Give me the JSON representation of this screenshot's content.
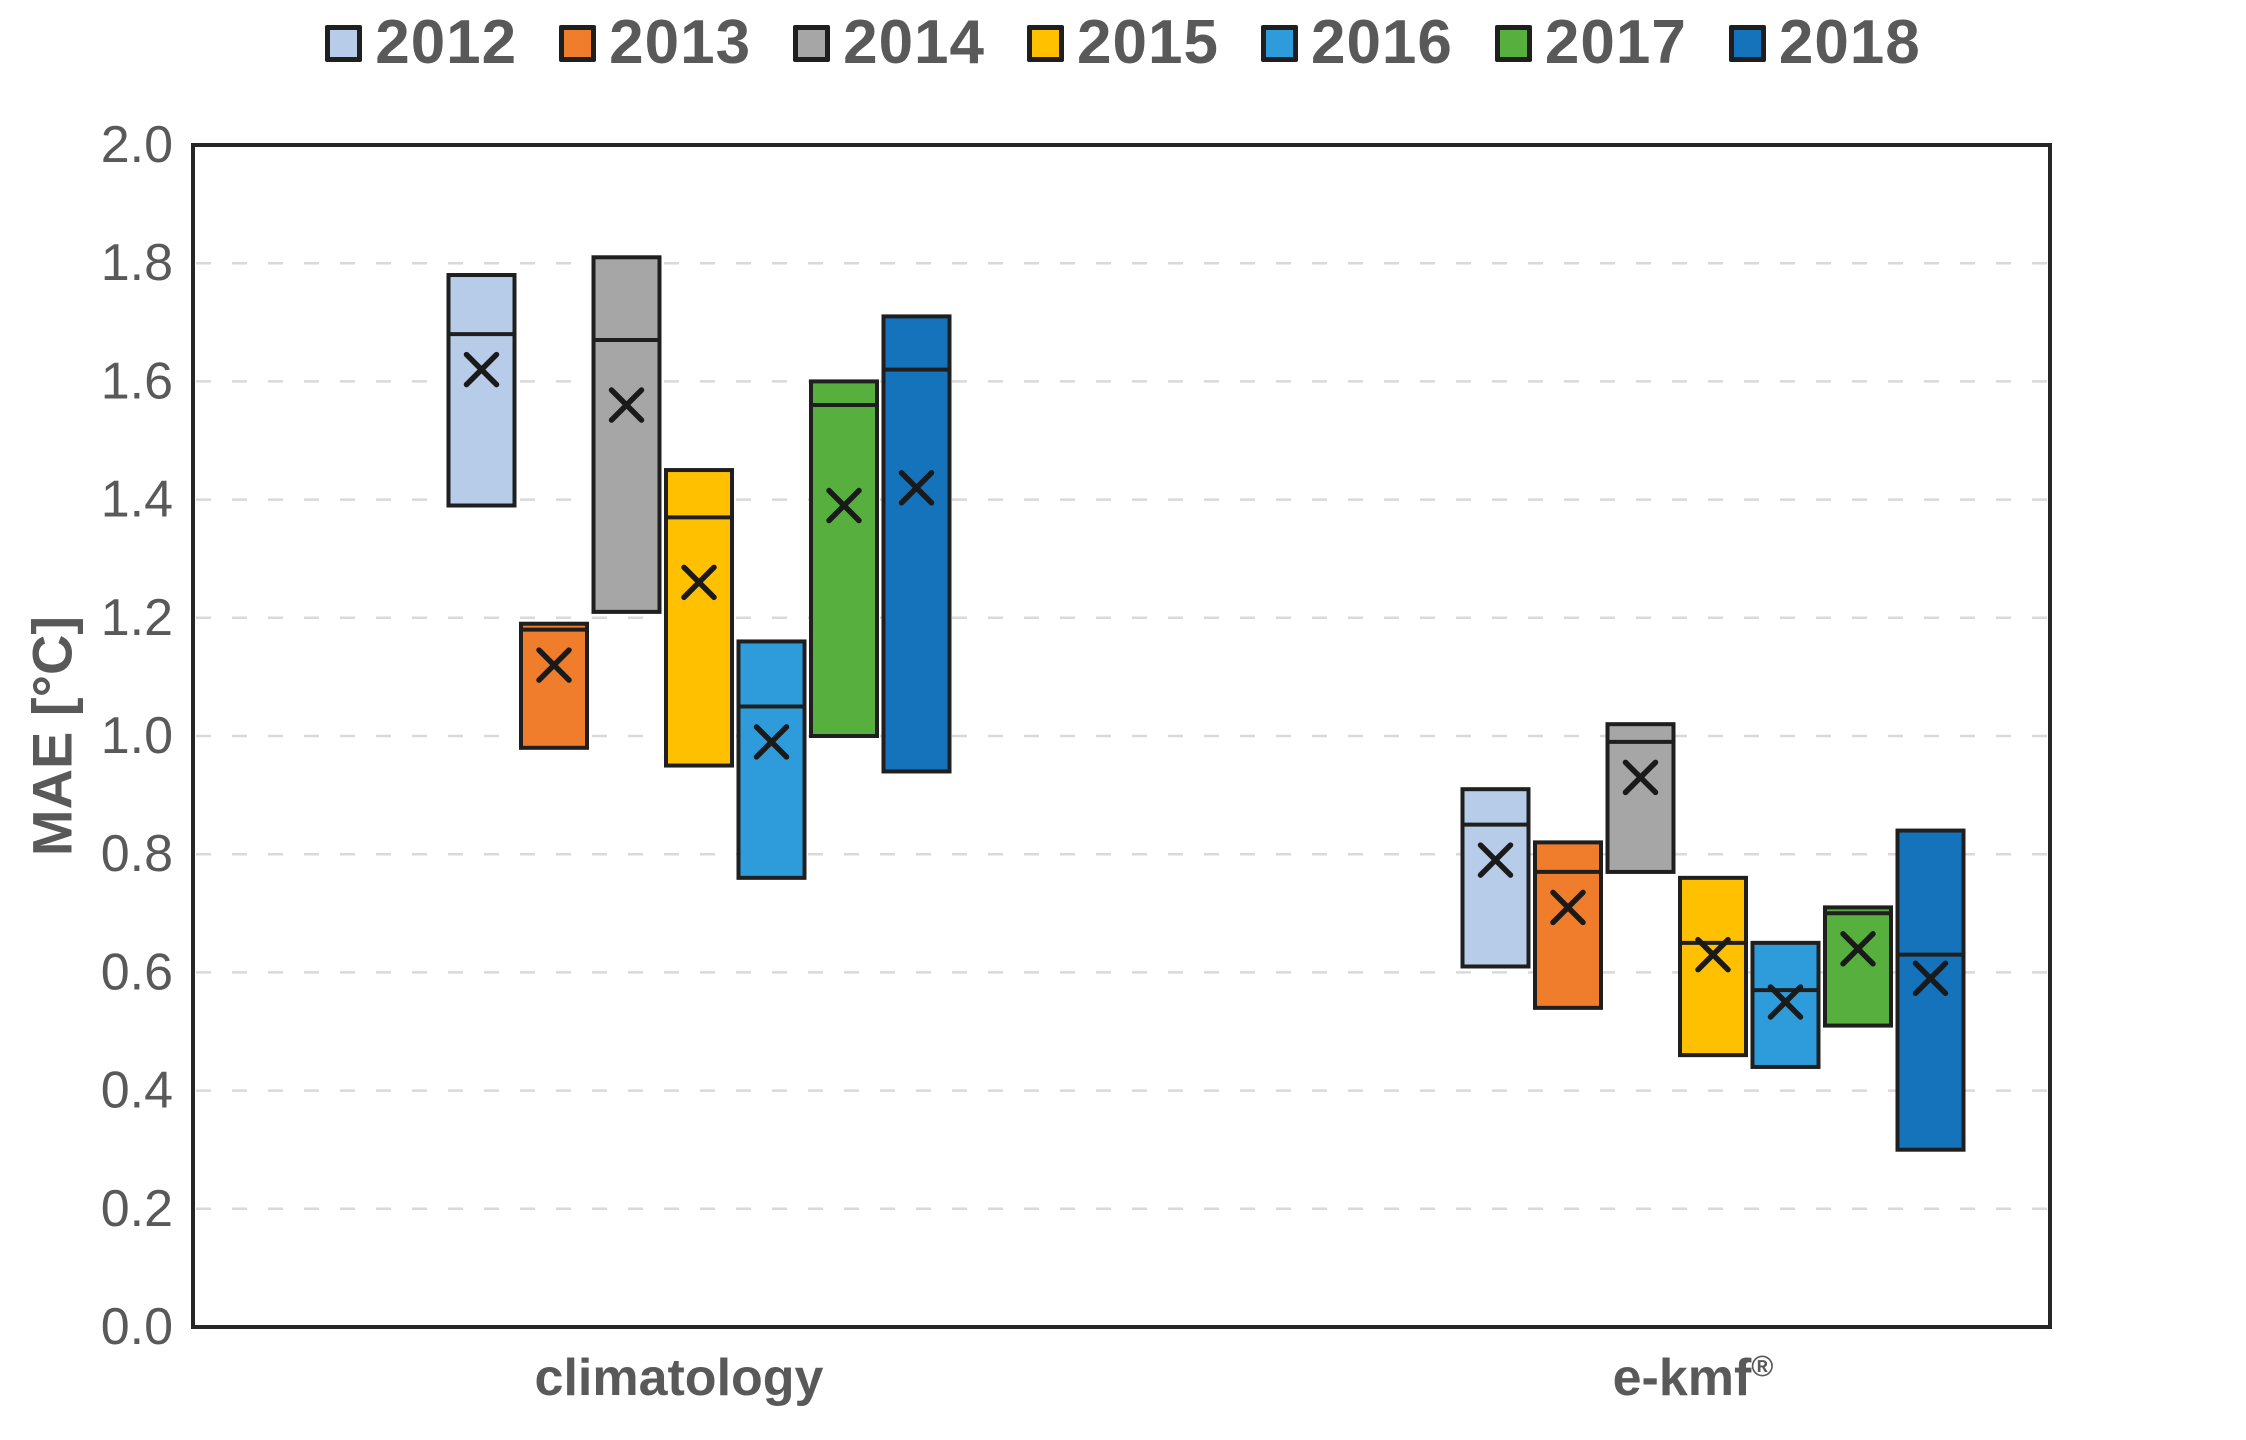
{
  "chart_data": {
    "type": "box",
    "title": "",
    "ylabel": "MAE [°C]",
    "ylim": [
      0.0,
      2.0
    ],
    "ytick_step": 0.2,
    "ytick_labels": [
      "0.0",
      "0.2",
      "0.4",
      "0.6",
      "0.8",
      "1.0",
      "1.2",
      "1.4",
      "1.6",
      "1.8",
      "2.0"
    ],
    "grid": "dashed horizontal",
    "legend_position": "top-center",
    "groups": [
      "climatology",
      "e-kmf®"
    ],
    "series": [
      {
        "name": "2012",
        "color": "#B7CCE8",
        "boxes": [
          {
            "group": "climatology",
            "min": 1.39,
            "median": 1.68,
            "mean": 1.62,
            "max": 1.78
          },
          {
            "group": "e-kmf®",
            "min": 0.61,
            "median": 0.85,
            "mean": 0.79,
            "max": 0.91
          }
        ]
      },
      {
        "name": "2013",
        "color": "#F07D2B",
        "boxes": [
          {
            "group": "climatology",
            "min": 0.98,
            "median": 1.18,
            "mean": 1.12,
            "max": 1.19
          },
          {
            "group": "e-kmf®",
            "min": 0.54,
            "median": 0.77,
            "mean": 0.71,
            "max": 0.82
          }
        ]
      },
      {
        "name": "2014",
        "color": "#A6A6A6",
        "boxes": [
          {
            "group": "climatology",
            "min": 1.21,
            "median": 1.67,
            "mean": 1.56,
            "max": 1.81
          },
          {
            "group": "e-kmf®",
            "min": 0.77,
            "median": 0.99,
            "mean": 0.93,
            "max": 1.02
          }
        ]
      },
      {
        "name": "2015",
        "color": "#FFC000",
        "boxes": [
          {
            "group": "climatology",
            "min": 0.95,
            "median": 1.37,
            "mean": 1.26,
            "max": 1.45
          },
          {
            "group": "e-kmf®",
            "min": 0.46,
            "median": 0.65,
            "mean": 0.63,
            "max": 0.76
          }
        ]
      },
      {
        "name": "2016",
        "color": "#2E9CDB",
        "boxes": [
          {
            "group": "climatology",
            "min": 0.76,
            "median": 1.05,
            "mean": 0.99,
            "max": 1.16
          },
          {
            "group": "e-kmf®",
            "min": 0.44,
            "median": 0.57,
            "mean": 0.55,
            "max": 0.65
          }
        ]
      },
      {
        "name": "2017",
        "color": "#57B03E",
        "boxes": [
          {
            "group": "climatology",
            "min": 1.0,
            "median": 1.56,
            "mean": 1.39,
            "max": 1.6
          },
          {
            "group": "e-kmf®",
            "min": 0.51,
            "median": 0.7,
            "mean": 0.64,
            "max": 0.71
          }
        ]
      },
      {
        "name": "2018",
        "color": "#1473BA",
        "boxes": [
          {
            "group": "climatology",
            "min": 0.94,
            "median": 1.62,
            "mean": 1.42,
            "max": 1.71
          },
          {
            "group": "e-kmf®",
            "min": 0.3,
            "median": 0.63,
            "mean": 0.59,
            "max": 0.84
          }
        ]
      }
    ],
    "colors": {
      "box_border": "#1f1f1f",
      "frame": "#262626",
      "gridline": "#D9D9D9",
      "tick_text": "#595959",
      "label_text": "#595959",
      "mean_marker": "#1a1a1a"
    }
  }
}
